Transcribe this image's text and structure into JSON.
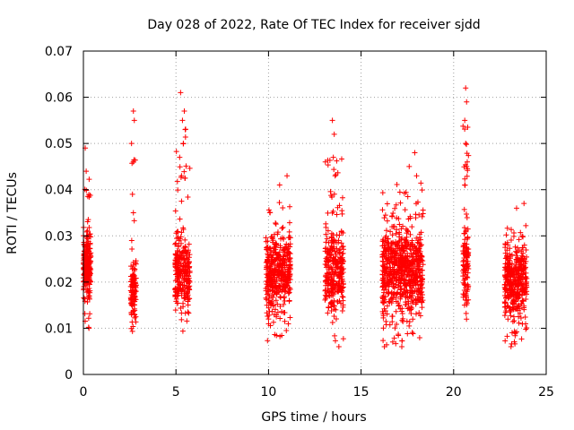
{
  "chart_data": {
    "type": "scatter",
    "title": "Day 028 of 2022, Rate Of TEC Index for receiver sjdd",
    "xlabel": "GPS time / hours",
    "ylabel": "ROTI / TECUs",
    "xlim": [
      0,
      25
    ],
    "ylim": [
      0,
      0.07
    ],
    "xticks": [
      "0",
      "5",
      "10",
      "15",
      "20",
      "25"
    ],
    "yticks": [
      "0",
      "0.01",
      "0.02",
      "0.03",
      "0.04",
      "0.05",
      "0.06",
      "0.07"
    ],
    "grid": true,
    "marker": "+",
    "colors": {
      "points": "#ff0000",
      "grid": "#a0a0a0",
      "axes": "#000000"
    },
    "series": [
      {
        "clusters": [
          {
            "x": [
              0.0,
              0.4
            ],
            "y": [
              0.01,
              0.049
            ],
            "n": 240,
            "core": [
              0.015,
              0.031
            ]
          },
          {
            "x": [
              2.55,
              2.85
            ],
            "y": [
              0.008,
              0.057
            ],
            "n": 110,
            "core": [
              0.01,
              0.026
            ]
          },
          {
            "x": [
              4.95,
              5.75
            ],
            "y": [
              0.009,
              0.061
            ],
            "n": 260,
            "core": [
              0.012,
              0.032
            ]
          },
          {
            "x": [
              9.85,
              11.2
            ],
            "y": [
              0.007,
              0.043
            ],
            "n": 420,
            "core": [
              0.011,
              0.033
            ]
          },
          {
            "x": [
              13.05,
              14.05
            ],
            "y": [
              0.006,
              0.055
            ],
            "n": 300,
            "core": [
              0.011,
              0.034
            ]
          },
          {
            "x": [
              16.15,
              18.35
            ],
            "y": [
              0.006,
              0.048
            ],
            "n": 720,
            "core": [
              0.01,
              0.035
            ]
          },
          {
            "x": [
              20.5,
              20.8
            ],
            "y": [
              0.009,
              0.062
            ],
            "n": 120,
            "core": [
              0.012,
              0.036
            ]
          },
          {
            "x": [
              22.75,
              23.95
            ],
            "y": [
              0.006,
              0.037
            ],
            "n": 380,
            "core": [
              0.01,
              0.031
            ]
          }
        ],
        "outliers": [
          [
            5.25,
            0.061
          ],
          [
            5.45,
            0.057
          ],
          [
            5.35,
            0.055
          ],
          [
            5.5,
            0.053
          ],
          [
            5.4,
            0.05
          ],
          [
            5.2,
            0.047
          ],
          [
            5.3,
            0.043
          ],
          [
            2.7,
            0.057
          ],
          [
            2.75,
            0.055
          ],
          [
            2.6,
            0.05
          ],
          [
            2.7,
            0.046
          ],
          [
            2.65,
            0.039
          ],
          [
            2.7,
            0.035
          ],
          [
            20.65,
            0.062
          ],
          [
            20.7,
            0.059
          ],
          [
            20.6,
            0.055
          ],
          [
            20.65,
            0.05
          ],
          [
            20.7,
            0.045
          ],
          [
            20.6,
            0.041
          ],
          [
            13.45,
            0.055
          ],
          [
            13.55,
            0.052
          ],
          [
            13.5,
            0.047
          ],
          [
            13.6,
            0.043
          ],
          [
            0.1,
            0.049
          ],
          [
            0.15,
            0.044
          ],
          [
            17.9,
            0.048
          ],
          [
            18.0,
            0.043
          ],
          [
            17.6,
            0.045
          ],
          [
            11.0,
            0.043
          ],
          [
            10.6,
            0.041
          ],
          [
            23.8,
            0.037
          ],
          [
            23.4,
            0.036
          ],
          [
            13.8,
            0.006
          ],
          [
            17.2,
            0.006
          ],
          [
            23.1,
            0.006
          ],
          [
            0.3,
            0.01
          ]
        ]
      }
    ]
  }
}
